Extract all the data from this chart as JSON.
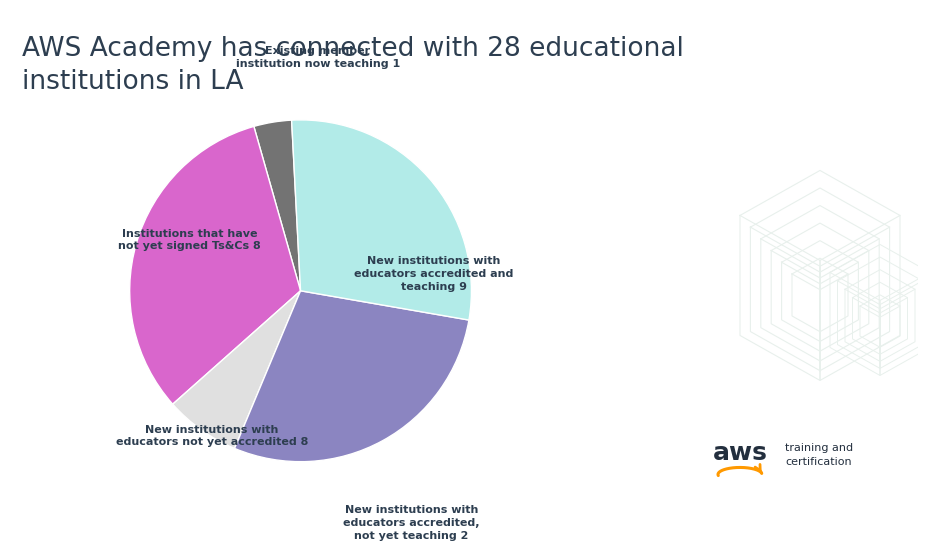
{
  "title_line1": "AWS Academy has connected with 28 educational",
  "title_line2": "institutions in LA",
  "title_color": "#2d3e50",
  "title_fontsize": 19,
  "background_color": "#ffffff",
  "slices": [
    {
      "label": "Existing member\ninstitution now teaching 1",
      "value": 1,
      "color": "#737373"
    },
    {
      "label": "New institutions with\neducators accredited and\nteaching 9",
      "value": 9,
      "color": "#d966cc"
    },
    {
      "label": "New institutions with\neducators accredited,\nnot yet teaching 2",
      "value": 2,
      "color": "#e0e0e0"
    },
    {
      "label": "New institutions with\neducators not yet accredited 8",
      "value": 8,
      "color": "#8b85c1"
    },
    {
      "label": "Institutions that have\nnot yet signed Ts&Cs 8",
      "value": 8,
      "color": "#b2ebe8"
    }
  ],
  "label_fontsize": 8.0,
  "label_color": "#2d3e50",
  "startangle": 93,
  "iso_color": "#e8f0ec",
  "aws_color": "#232f3e",
  "smile_color": "#ff9900"
}
